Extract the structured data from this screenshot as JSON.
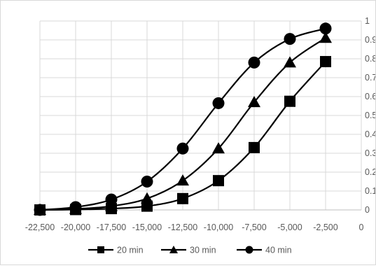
{
  "chart_data": {
    "type": "line",
    "title": "",
    "xlabel": "",
    "ylabel": "",
    "xlim": [
      -22500,
      0
    ],
    "ylim": [
      0,
      1
    ],
    "x_ticks": [
      -22500,
      -20000,
      -17500,
      -15000,
      -12500,
      -10000,
      -7500,
      -5000,
      -2500,
      0
    ],
    "x_tick_labels": [
      "-22,500",
      "-20,000",
      "-17,500",
      "-15,000",
      "-12,500",
      "-10,000",
      "-7,500",
      "-5,000",
      "-2,500",
      "0"
    ],
    "y_ticks": [
      0,
      0.1,
      0.2,
      0.3,
      0.4,
      0.5,
      0.6,
      0.7,
      0.8,
      0.9,
      1
    ],
    "y_tick_labels": [
      "0",
      "0.1",
      "0.2",
      "0.3",
      "0.4",
      "0.5",
      "0.6",
      "0.7",
      "0.8",
      "0.9",
      "1"
    ],
    "y_axis_side": "right",
    "grid": true,
    "legend_position": "bottom",
    "x": [
      -22500,
      -20000,
      -17500,
      -15000,
      -12500,
      -10000,
      -7500,
      -5000,
      -2500
    ],
    "series": [
      {
        "name": "20 min",
        "marker": "square",
        "values": [
          0.0,
          0.002,
          0.007,
          0.02,
          0.06,
          0.155,
          0.33,
          0.575,
          0.785
        ]
      },
      {
        "name": "30 min",
        "marker": "triangle",
        "values": [
          0.0,
          0.005,
          0.02,
          0.06,
          0.155,
          0.325,
          0.57,
          0.78,
          0.91
        ]
      },
      {
        "name": "40 min",
        "marker": "circle",
        "values": [
          0.0,
          0.015,
          0.055,
          0.15,
          0.325,
          0.565,
          0.78,
          0.905,
          0.96
        ]
      }
    ],
    "colors": {
      "series": "#000000",
      "grid": "#d9d9d9",
      "axis": "#bfbfbf",
      "text": "#595959"
    }
  }
}
